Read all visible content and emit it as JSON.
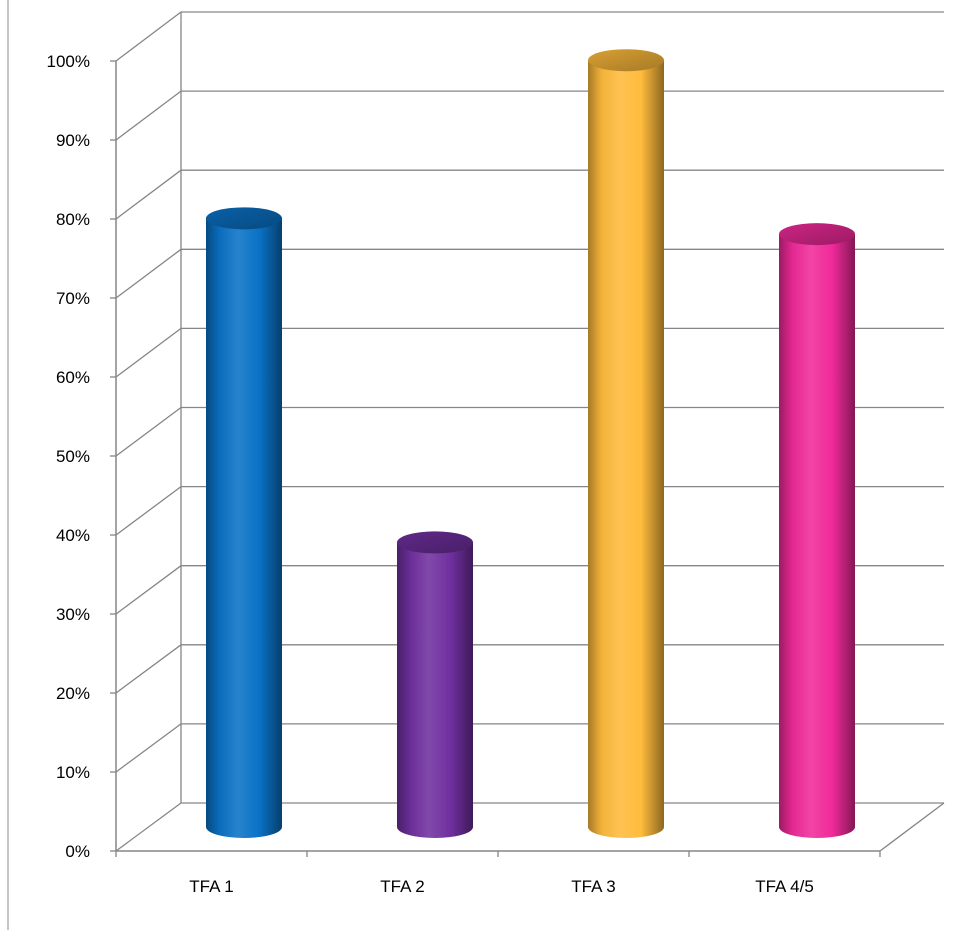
{
  "chart_data": {
    "type": "bar",
    "style": "3d-cylinder",
    "categories": [
      "TFA 1",
      "TFA 2",
      "TFA 3",
      "TFA 4/5"
    ],
    "values": [
      77,
      36,
      97,
      75
    ],
    "colors": [
      "#0a72c6",
      "#7030a0",
      "#ffbb3c",
      "#f02a9a"
    ],
    "ylim": [
      0,
      100
    ],
    "yticks": [
      "0%",
      "10%",
      "20%",
      "30%",
      "40%",
      "50%",
      "60%",
      "70%",
      "80%",
      "90%",
      "100%"
    ],
    "grid": true,
    "legend": "none"
  }
}
